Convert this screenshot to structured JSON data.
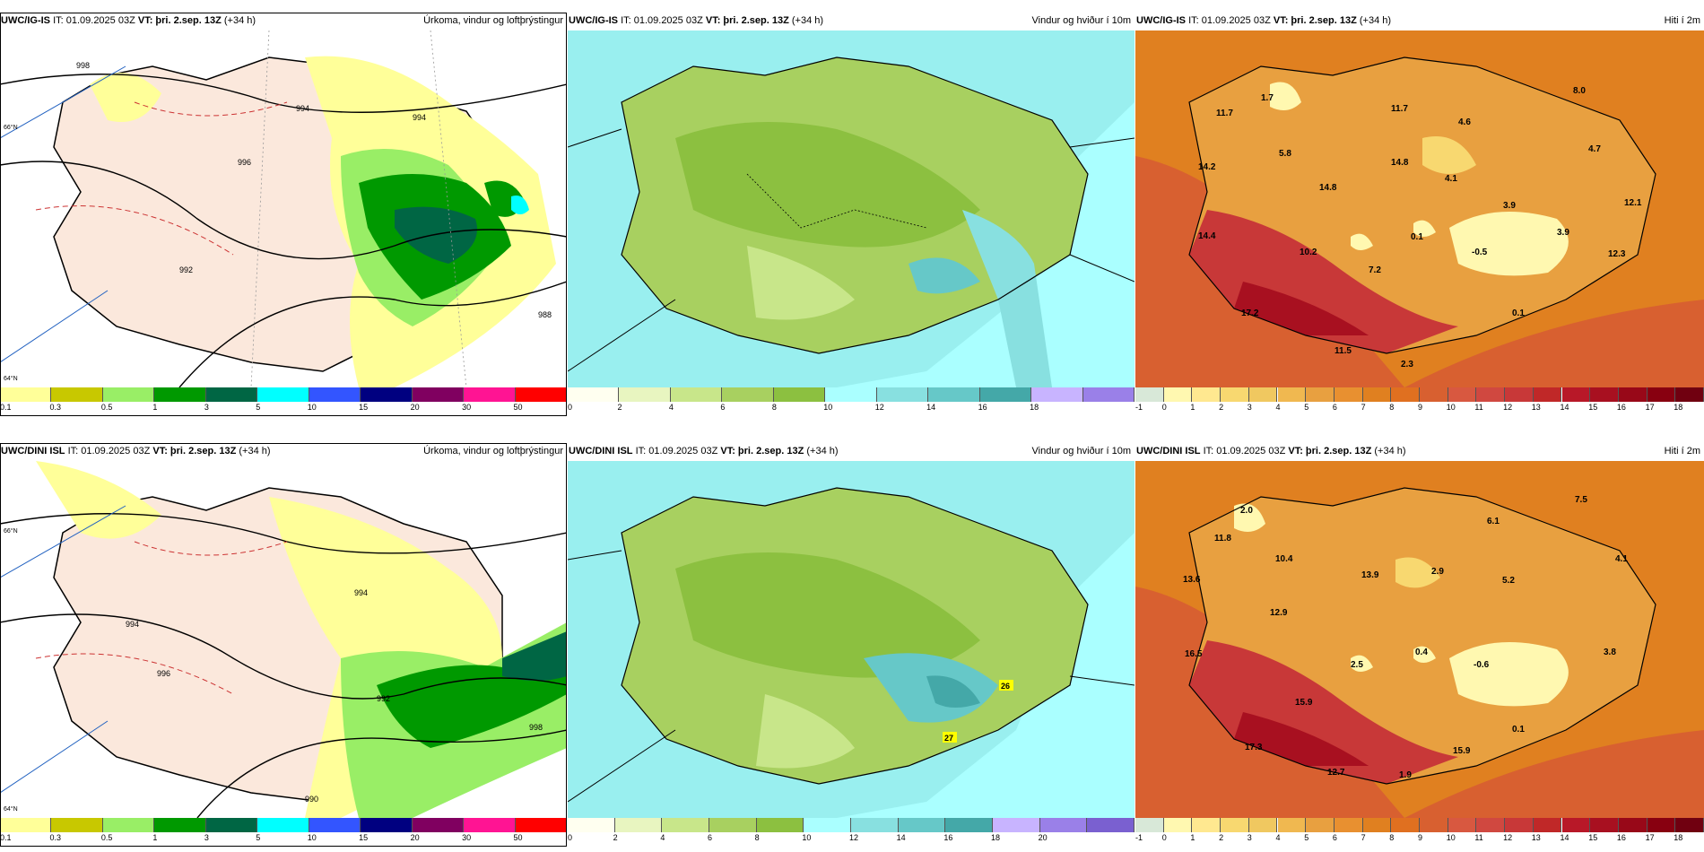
{
  "panels": [
    {
      "model": "UWC/IG-IS",
      "issue": "IT: 01.09.2025 03Z",
      "valid_label": "VT:",
      "valid": "þri. 2.sep. 13Z",
      "lead": "(+34 h)",
      "title": "Úrkoma, vindur og loftþrýstingur"
    },
    {
      "model": "UWC/IG-IS",
      "issue": "IT: 01.09.2025 03Z",
      "valid_label": "VT:",
      "valid": "þri. 2.sep. 13Z",
      "lead": "(+34 h)",
      "title": "Vindur og hviður í 10m"
    },
    {
      "model": "UWC/IG-IS",
      "issue": "IT: 01.09.2025 03Z",
      "valid_label": "VT:",
      "valid": "þri. 2.sep. 13Z",
      "lead": "(+34 h)",
      "title": "Hiti í 2m"
    },
    {
      "model": "UWC/DINI ISL",
      "issue": "IT: 01.09.2025 03Z",
      "valid_label": "VT:",
      "valid": "þri. 2.sep. 13Z",
      "lead": "(+34 h)",
      "title": "Úrkoma, vindur og loftþrýstingur"
    },
    {
      "model": "UWC/DINI ISL",
      "issue": "IT: 01.09.2025 03Z",
      "valid_label": "VT:",
      "valid": "þri. 2.sep. 13Z",
      "lead": "(+34 h)",
      "title": "Vindur og hviður í 10m"
    },
    {
      "model": "UWC/DINI ISL",
      "issue": "IT: 01.09.2025 03Z",
      "valid_label": "VT:",
      "valid": "þri. 2.sep. 13Z",
      "lead": "(+34 h)",
      "title": "Hiti í 2m"
    }
  ],
  "colorbars": {
    "precip": {
      "labels": [
        "0.1",
        "0.3",
        "0.5",
        "1",
        "3",
        "5",
        "10",
        "15",
        "20",
        "30",
        "50"
      ],
      "colors": [
        "#ffff99",
        "#c8c800",
        "#99ee66",
        "#009900",
        "#006644",
        "#00ffff",
        "#3355ff",
        "#000080",
        "#800060",
        "#ff1493",
        "#ff0000"
      ]
    },
    "wind_top": {
      "labels": [
        "0",
        "2",
        "4",
        "6",
        "8",
        "10",
        "12",
        "14",
        "16",
        "18"
      ],
      "colors": [
        "#fffff0",
        "#e8f5c0",
        "#c8e68a",
        "#a8d060",
        "#8cc040",
        "#aaffff",
        "#88e0e0",
        "#66c8c8",
        "#44a8a8",
        "#c8b4ff",
        "#9a80e8"
      ]
    },
    "wind_bottom": {
      "labels": [
        "0",
        "2",
        "4",
        "6",
        "8",
        "10",
        "12",
        "14",
        "16",
        "18",
        "20"
      ],
      "colors": [
        "#fffff0",
        "#e8f5c0",
        "#c8e68a",
        "#a8d060",
        "#8cc040",
        "#aaffff",
        "#88e0e0",
        "#66c8c8",
        "#44a8a8",
        "#c8b4ff",
        "#9a80e8",
        "#7a60d0"
      ]
    },
    "temp": {
      "labels": [
        "-1",
        "0",
        "1",
        "2",
        "3",
        "4",
        "5",
        "6",
        "7",
        "8",
        "9",
        "10",
        "11",
        "12",
        "13",
        "14",
        "15",
        "16",
        "17",
        "18"
      ],
      "colors": [
        "#d8e8d8",
        "#fff8b0",
        "#ffe890",
        "#f8d870",
        "#f0c860",
        "#f0b850",
        "#e8a040",
        "#e89030",
        "#e08020",
        "#e07020",
        "#d86030",
        "#d85840",
        "#d04840",
        "#c83838",
        "#c02828",
        "#b81828",
        "#a81020",
        "#980818",
        "#880010",
        "#700010"
      ]
    }
  },
  "temp_labels_top": [
    "11.7",
    "1.7",
    "8.0",
    "14.2",
    "5.8",
    "11.7",
    "4.6",
    "14.8",
    "4.7",
    "14.8",
    "4.1",
    "3.9",
    "12.1",
    "14.4",
    "0.1",
    "3.9",
    "10.2",
    "-0.5",
    "12.3",
    "7.2",
    "17.2",
    "0.1",
    "11.5",
    "2.3"
  ],
  "temp_labels_bottom": [
    "2.0",
    "7.5",
    "11.8",
    "6.1",
    "10.4",
    "4.1",
    "13.6",
    "13.9",
    "2.9",
    "5.2",
    "12.9",
    "16.5",
    "2.5",
    "0.4",
    "-0.6",
    "3.8",
    "15.9",
    "0.1",
    "17.3",
    "15.9",
    "12.7",
    "1.9"
  ],
  "isobar_labels_top": [
    "998",
    "994",
    "992",
    "996",
    "988",
    "994"
  ],
  "isobar_labels_bottom": [
    "994",
    "992",
    "994",
    "996",
    "990",
    "998"
  ],
  "wind_gust_labels_bottom": [
    "26",
    "27"
  ],
  "lat_labels_top": [
    "66°N",
    "64°N"
  ],
  "lat_labels_bottom": [
    "66°N",
    "64°N"
  ]
}
